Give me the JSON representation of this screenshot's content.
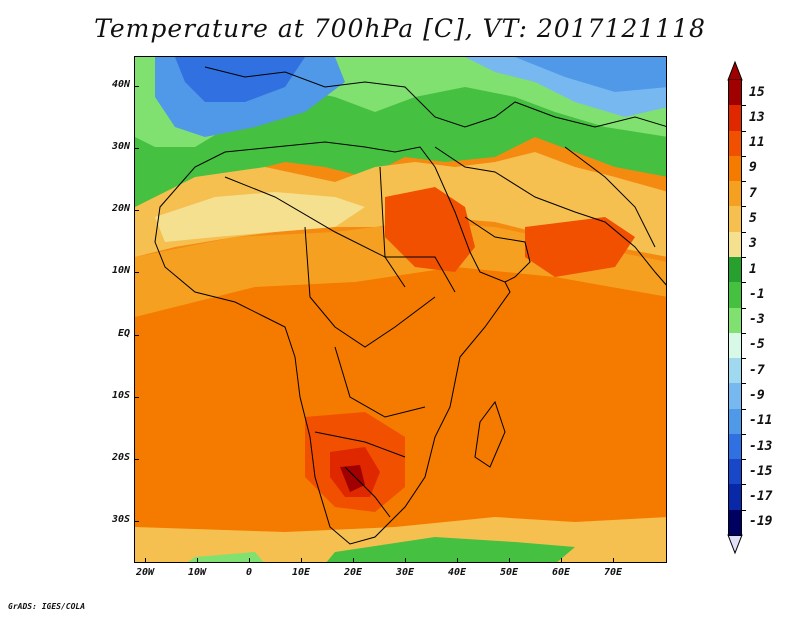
{
  "title": "Temperature at 700hPa [C], VT: 2017121118",
  "footer": "GrADS: IGES/COLA",
  "chart_data": {
    "type": "heatmap",
    "variable": "Temperature at 700hPa",
    "units": "C",
    "valid_time": "2017121118",
    "lon_range": [
      -22,
      80
    ],
    "lat_range": [
      -36,
      45
    ],
    "lat_labels": [
      "40N",
      "30N",
      "20N",
      "10N",
      "EQ",
      "10S",
      "20S",
      "30S"
    ],
    "lon_labels": [
      "20W",
      "10W",
      "0",
      "10E",
      "20E",
      "30E",
      "40E",
      "50E",
      "60E",
      "70E"
    ],
    "colorbar": {
      "labels": [
        "15",
        "13",
        "11",
        "9",
        "7",
        "5",
        "3",
        "1",
        "-1",
        "-3",
        "-5",
        "-7",
        "-9",
        "-11",
        "-13",
        "-15",
        "-17",
        "-19"
      ],
      "colors": [
        "#a00000",
        "#e02800",
        "#f05000",
        "#f57a00",
        "#f5a020",
        "#f5c050",
        "#f5e090",
        "#28a030",
        "#45c040",
        "#80e070",
        "#d8f8e8",
        "#a0d8f0",
        "#78b8f0",
        "#5098e8",
        "#3070e0",
        "#1848c8",
        "#0828a8",
        "#000060"
      ]
    }
  }
}
